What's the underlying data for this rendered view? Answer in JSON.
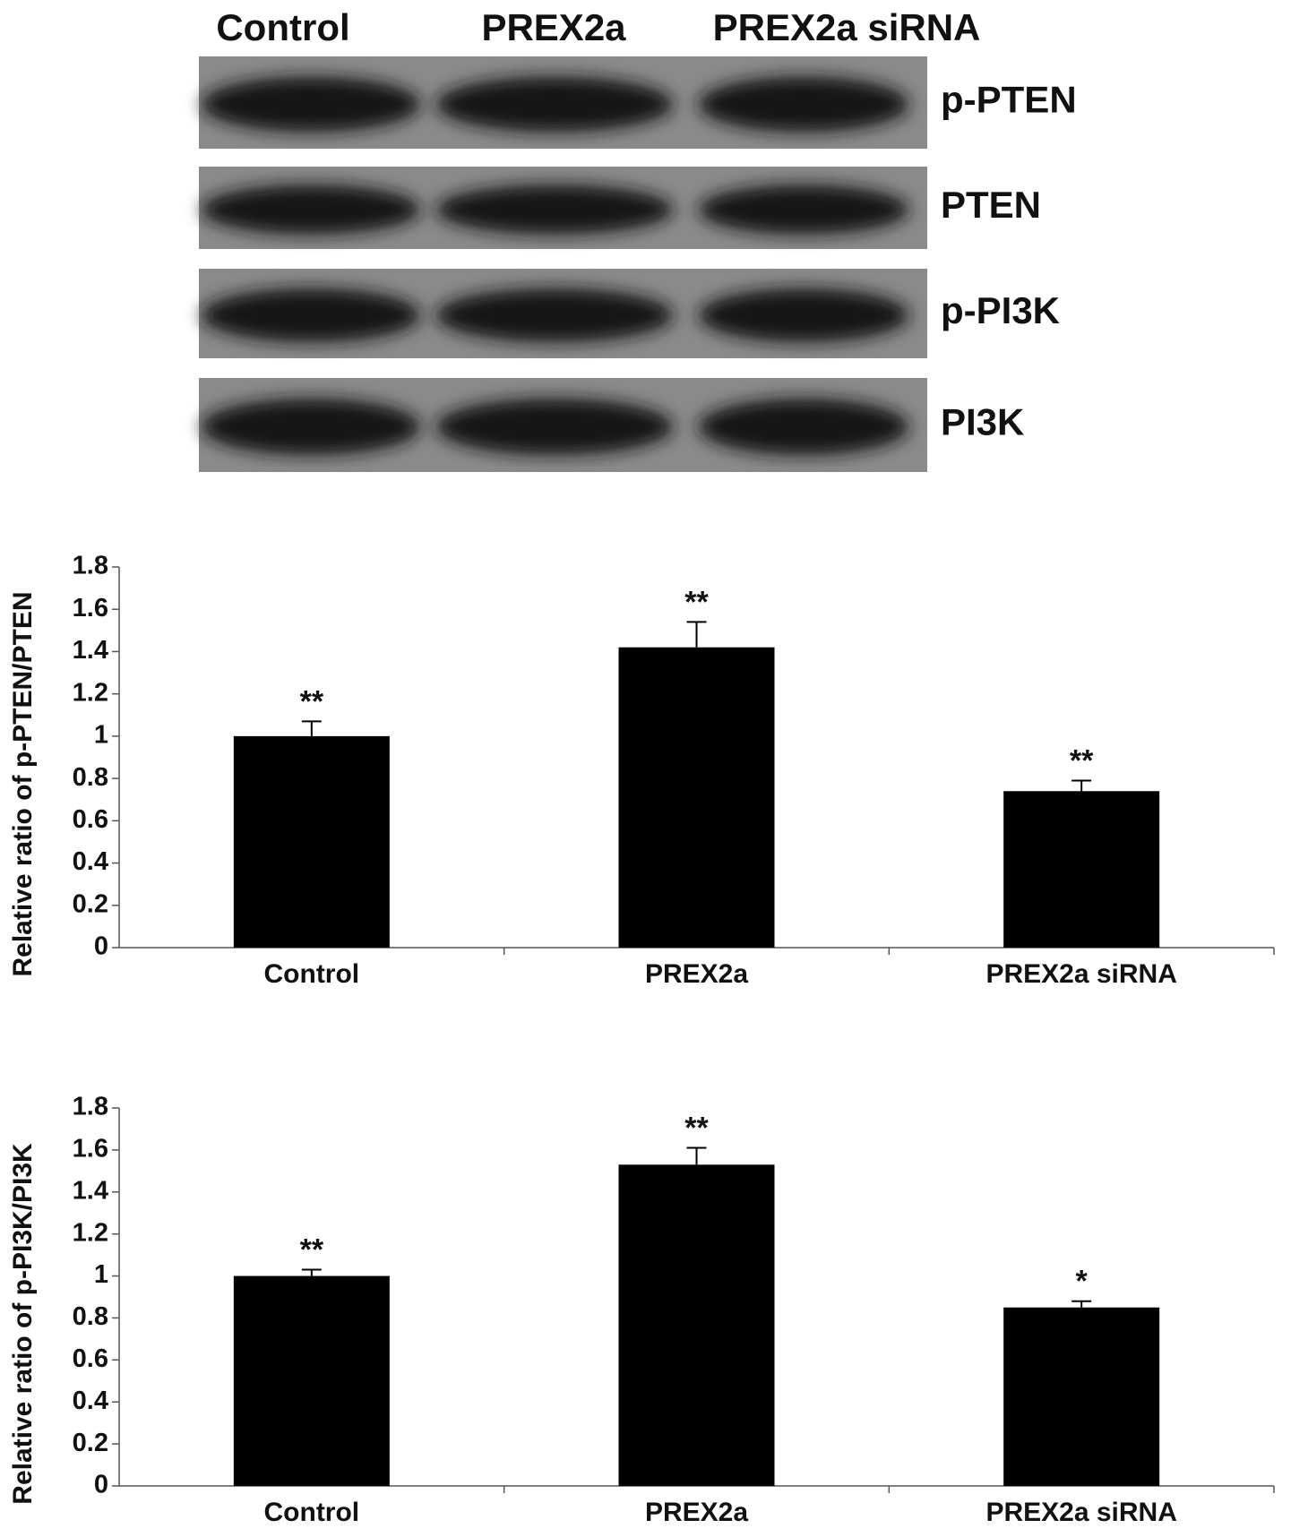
{
  "blot": {
    "lanes": [
      "Control",
      "PREX2a",
      "PREX2a siRNA"
    ],
    "rows": [
      "p-PTEN",
      "PTEN",
      "p-PI3K",
      "PI3K"
    ]
  },
  "chart_data": [
    {
      "type": "bar",
      "y_label": "Relative ratio of p-PTEN/PTEN",
      "categories": [
        "Control",
        "PREX2a",
        "PREX2a siRNA"
      ],
      "values": [
        1.0,
        1.42,
        0.74
      ],
      "errors": [
        0.07,
        0.12,
        0.05
      ],
      "annotations": [
        "**",
        "**",
        "**"
      ],
      "color": "#000000",
      "ylim": [
        0,
        1.8
      ],
      "yticks": [
        0,
        0.2,
        0.4,
        0.6,
        0.8,
        1,
        1.2,
        1.4,
        1.6,
        1.8
      ]
    },
    {
      "type": "bar",
      "y_label": "Relative ratio of p-PI3K/PI3K",
      "categories": [
        "Control",
        "PREX2a",
        "PREX2a siRNA"
      ],
      "values": [
        1.0,
        1.53,
        0.85
      ],
      "errors": [
        0.03,
        0.08,
        0.03
      ],
      "annotations": [
        "**",
        "**",
        "*"
      ],
      "color": "#000000",
      "ylim": [
        0,
        1.8
      ],
      "yticks": [
        0,
        0.2,
        0.4,
        0.6,
        0.8,
        1,
        1.2,
        1.4,
        1.6,
        1.8
      ]
    }
  ]
}
